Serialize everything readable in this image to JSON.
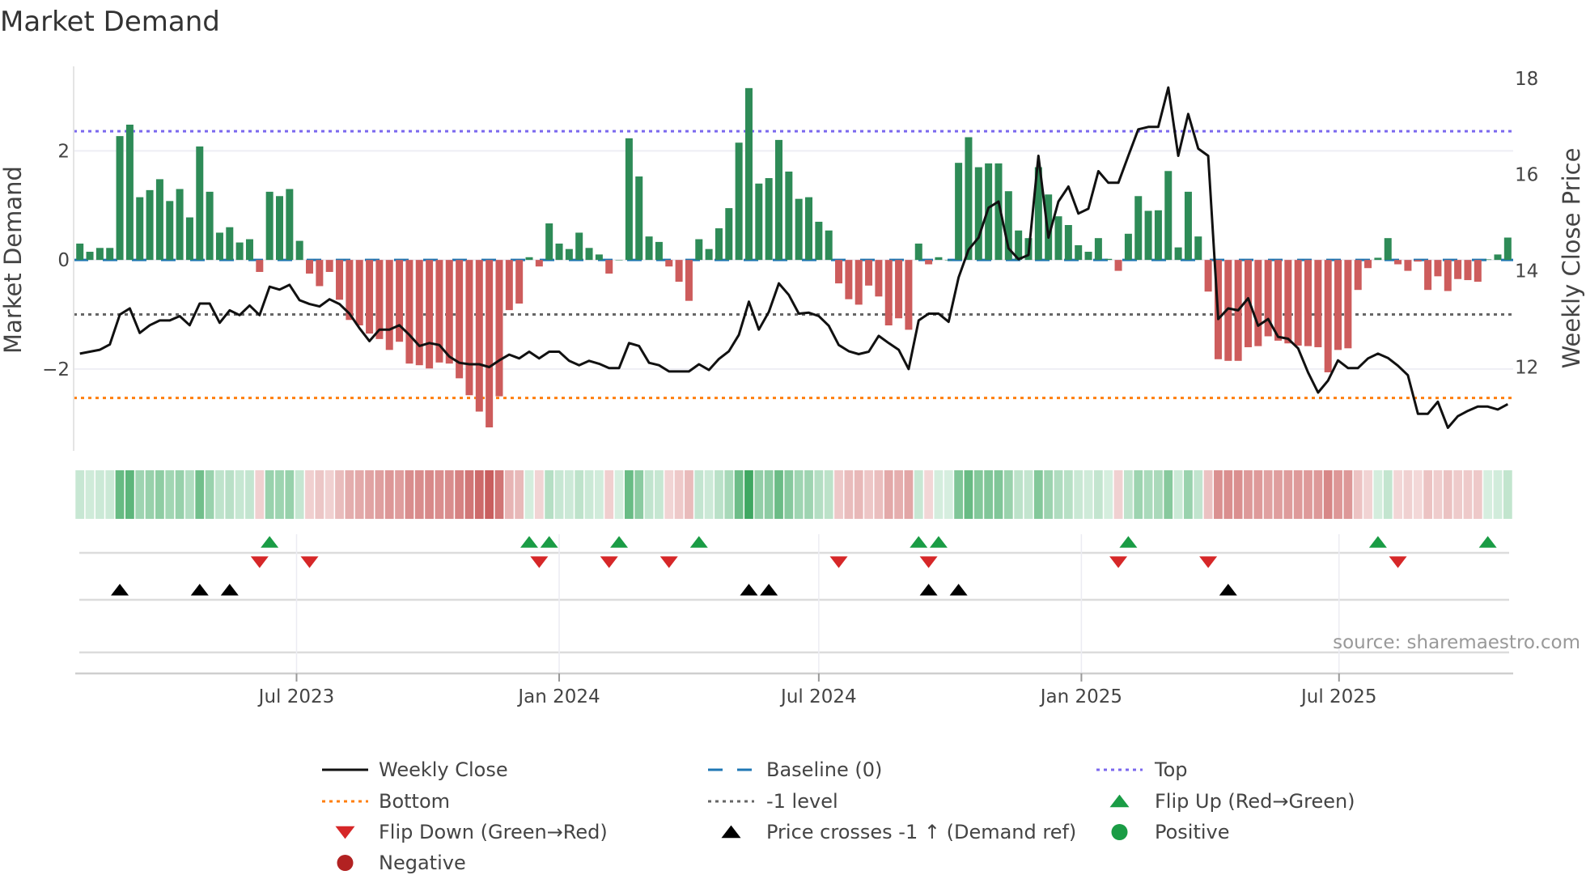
{
  "title": "Market Demand",
  "source": "source: sharemaestro.com",
  "colors": {
    "positive_bar": "#2e8b57",
    "negative_bar": "#cd5c5c",
    "price_line": "#111111",
    "baseline": "#1f77b4",
    "top": "#7b68ee",
    "bottom": "#ff7f0e",
    "minus_one": "#666666",
    "flip_up": "#1a9c45",
    "flip_down": "#d62728",
    "cross": "#000000",
    "negative_dot": "#b22222"
  },
  "chart_data": {
    "type": "bar",
    "title": "Market Demand",
    "ylabel": "Market Demand",
    "y2label": "Weekly Close Price",
    "x_unit": "week index",
    "ylim": [
      -3.5,
      3.4
    ],
    "y2lim": [
      10.26,
      18.08
    ],
    "yticks": [
      {
        "v": 2,
        "label": "2"
      },
      {
        "v": 0,
        "label": "0"
      },
      {
        "v": -2,
        "label": "−2"
      }
    ],
    "y2ticks": [
      {
        "v": 12,
        "label": "12"
      },
      {
        "v": 14,
        "label": "14"
      },
      {
        "v": 16,
        "label": "16"
      },
      {
        "v": 18,
        "label": "18"
      }
    ],
    "xticks": [
      {
        "x": 21.7,
        "label": "Jul 2023"
      },
      {
        "x": 48.0,
        "label": "Jan 2024"
      },
      {
        "x": 74.0,
        "label": "Jul 2024"
      },
      {
        "x": 100.3,
        "label": "Jan 2025"
      },
      {
        "x": 126.1,
        "label": "Jul 2025"
      }
    ],
    "levels": {
      "top": 2.36,
      "bottom": -2.53,
      "minus_one": -1.0,
      "baseline": 0
    },
    "demand": [
      0.3,
      0.15,
      0.22,
      0.22,
      2.27,
      2.48,
      1.15,
      1.28,
      1.48,
      1.08,
      1.3,
      0.78,
      2.08,
      1.25,
      0.5,
      0.6,
      0.32,
      0.38,
      -0.22,
      1.25,
      1.17,
      1.3,
      0.35,
      -0.25,
      -0.48,
      -0.22,
      -0.73,
      -1.1,
      -1.2,
      -1.35,
      -1.45,
      -1.65,
      -1.5,
      -1.9,
      -1.93,
      -1.99,
      -1.88,
      -1.9,
      -2.17,
      -2.48,
      -2.78,
      -3.07,
      -2.5,
      -0.92,
      -0.8,
      0.05,
      -0.12,
      0.67,
      0.3,
      0.2,
      0.5,
      0.22,
      0.1,
      -0.25,
      0.0,
      2.23,
      1.53,
      0.43,
      0.33,
      -0.12,
      -0.4,
      -0.75,
      0.38,
      0.2,
      0.58,
      0.95,
      2.15,
      3.15,
      1.4,
      1.5,
      2.2,
      1.62,
      1.12,
      1.15,
      0.7,
      0.54,
      -0.43,
      -0.72,
      -0.82,
      -0.47,
      -0.67,
      -1.2,
      -1.07,
      -1.28,
      0.3,
      -0.08,
      0.05,
      0.0,
      1.78,
      2.25,
      1.7,
      1.77,
      1.77,
      1.26,
      0.54,
      0.4,
      1.7,
      1.2,
      0.8,
      0.64,
      0.27,
      0.15,
      0.4,
      0.02,
      -0.2,
      0.48,
      1.17,
      0.9,
      0.91,
      1.63,
      0.23,
      1.25,
      0.43,
      -0.58,
      -1.82,
      -1.85,
      -1.85,
      -1.6,
      -1.58,
      -1.4,
      -1.48,
      -1.53,
      -1.57,
      -1.58,
      -1.6,
      -2.06,
      -1.65,
      -1.62,
      -0.55,
      -0.15,
      0.04,
      0.4,
      -0.08,
      -0.2,
      -0.03,
      -0.55,
      -0.3,
      -0.57,
      -0.35,
      -0.37,
      -0.4,
      0.01,
      0.1,
      0.41
    ],
    "price": [
      12.28,
      12.32,
      12.36,
      12.47,
      13.09,
      13.22,
      12.71,
      12.87,
      12.97,
      12.97,
      13.06,
      12.87,
      13.32,
      13.32,
      12.92,
      13.18,
      13.08,
      13.28,
      13.08,
      13.67,
      13.61,
      13.71,
      13.39,
      13.31,
      13.26,
      13.41,
      13.31,
      13.11,
      12.81,
      12.54,
      12.78,
      12.78,
      12.87,
      12.67,
      12.44,
      12.5,
      12.46,
      12.22,
      12.09,
      12.06,
      12.06,
      12.0,
      12.14,
      12.26,
      12.18,
      12.32,
      12.18,
      12.32,
      12.32,
      12.13,
      12.04,
      12.13,
      12.07,
      11.98,
      11.98,
      12.5,
      12.44,
      12.09,
      12.04,
      11.91,
      11.91,
      11.91,
      12.06,
      11.94,
      12.17,
      12.33,
      12.67,
      13.36,
      12.78,
      13.15,
      13.74,
      13.5,
      13.11,
      13.13,
      13.06,
      12.86,
      12.46,
      12.33,
      12.27,
      12.32,
      12.65,
      12.5,
      12.36,
      11.96,
      12.97,
      13.11,
      13.11,
      12.94,
      13.86,
      14.44,
      14.69,
      15.31,
      15.44,
      14.47,
      14.24,
      14.33,
      16.39,
      14.69,
      15.44,
      15.75,
      15.19,
      15.29,
      16.07,
      15.83,
      15.83,
      16.39,
      16.94,
      16.99,
      16.99,
      17.81,
      16.39,
      17.26,
      16.54,
      16.39,
      13.0,
      13.22,
      13.18,
      13.43,
      12.86,
      13.0,
      12.63,
      12.59,
      12.39,
      11.89,
      11.47,
      11.72,
      12.14,
      11.98,
      11.98,
      12.18,
      12.28,
      12.19,
      12.03,
      11.83,
      11.03,
      11.03,
      11.28,
      10.74,
      10.98,
      11.09,
      11.18,
      11.18,
      11.12,
      11.23
    ],
    "flip_up_weeks": [
      19,
      45,
      47,
      54,
      62,
      84,
      86,
      105,
      130,
      141
    ],
    "flip_down_weeks": [
      18,
      23,
      46,
      53,
      59,
      76,
      85,
      104,
      113,
      132
    ],
    "price_cross_weeks": [
      4,
      12,
      15,
      67,
      69,
      85,
      88,
      115
    ],
    "legend": [
      {
        "key": "close",
        "label": "Weekly Close"
      },
      {
        "key": "baseline",
        "label": "Baseline (0)"
      },
      {
        "key": "top",
        "label": "Top"
      },
      {
        "key": "bottom",
        "label": "Bottom"
      },
      {
        "key": "minus_one",
        "label": "-1 level"
      },
      {
        "key": "flip_up",
        "label": "Flip Up (Red→Green)"
      },
      {
        "key": "flip_down",
        "label": "Flip Down (Green→Red)"
      },
      {
        "key": "cross",
        "label": "Price crosses -1 ↑ (Demand ref)"
      },
      {
        "key": "positive",
        "label": "Positive"
      },
      {
        "key": "negative",
        "label": "Negative"
      }
    ],
    "legend_position": "bottom"
  }
}
